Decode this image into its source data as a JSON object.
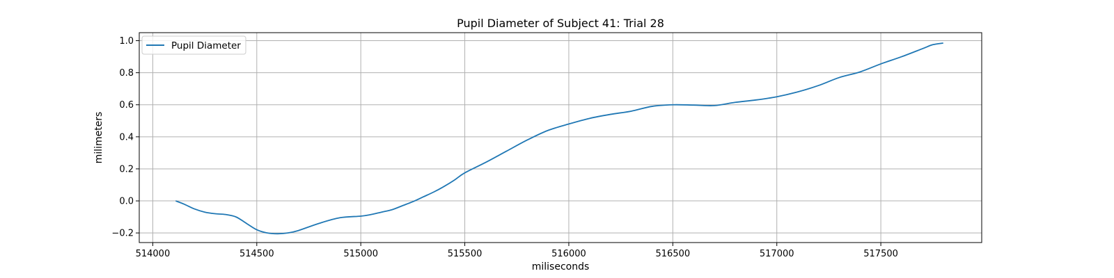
{
  "chart_data": {
    "type": "line",
    "title": "Pupil Diameter of Subject 41: Trial 28",
    "xlabel": "miliseconds",
    "ylabel": "milimeters",
    "xlim": [
      513935,
      517985
    ],
    "ylim": [
      -0.26,
      1.05
    ],
    "xticks": [
      514000,
      514500,
      515000,
      515500,
      516000,
      516500,
      517000,
      517500
    ],
    "yticks": [
      -0.2,
      0.0,
      0.2,
      0.4,
      0.6,
      0.8,
      1.0
    ],
    "xtick_labels": [
      "514000",
      "514500",
      "515000",
      "515500",
      "516000",
      "516500",
      "517000",
      "517500"
    ],
    "ytick_labels": [
      "−0.2",
      "0.0",
      "0.2",
      "0.4",
      "0.6",
      "0.8",
      "1.0"
    ],
    "grid": true,
    "legend_position": "top-left",
    "series": [
      {
        "name": "Pupil Diameter",
        "color": "#1f77b4",
        "x": [
          514110,
          514150,
          514200,
          514250,
          514300,
          514350,
          514400,
          514450,
          514500,
          514550,
          514600,
          514650,
          514700,
          514800,
          514900,
          515000,
          515050,
          515100,
          515150,
          515200,
          515250,
          515300,
          515350,
          515400,
          515450,
          515500,
          515600,
          515700,
          515800,
          515900,
          516000,
          516100,
          516200,
          516300,
          516400,
          516500,
          516600,
          516700,
          516800,
          516900,
          517000,
          517100,
          517200,
          517300,
          517400,
          517500,
          517600,
          517700,
          517750,
          517800
        ],
        "y": [
          0.0,
          -0.02,
          -0.05,
          -0.07,
          -0.08,
          -0.085,
          -0.1,
          -0.14,
          -0.18,
          -0.2,
          -0.205,
          -0.2,
          -0.185,
          -0.14,
          -0.105,
          -0.095,
          -0.085,
          -0.07,
          -0.055,
          -0.03,
          -0.005,
          0.025,
          0.055,
          0.09,
          0.13,
          0.175,
          0.24,
          0.31,
          0.38,
          0.44,
          0.48,
          0.515,
          0.54,
          0.56,
          0.59,
          0.6,
          0.598,
          0.595,
          0.615,
          0.63,
          0.65,
          0.68,
          0.72,
          0.77,
          0.805,
          0.855,
          0.9,
          0.95,
          0.975,
          0.985
        ]
      }
    ]
  }
}
